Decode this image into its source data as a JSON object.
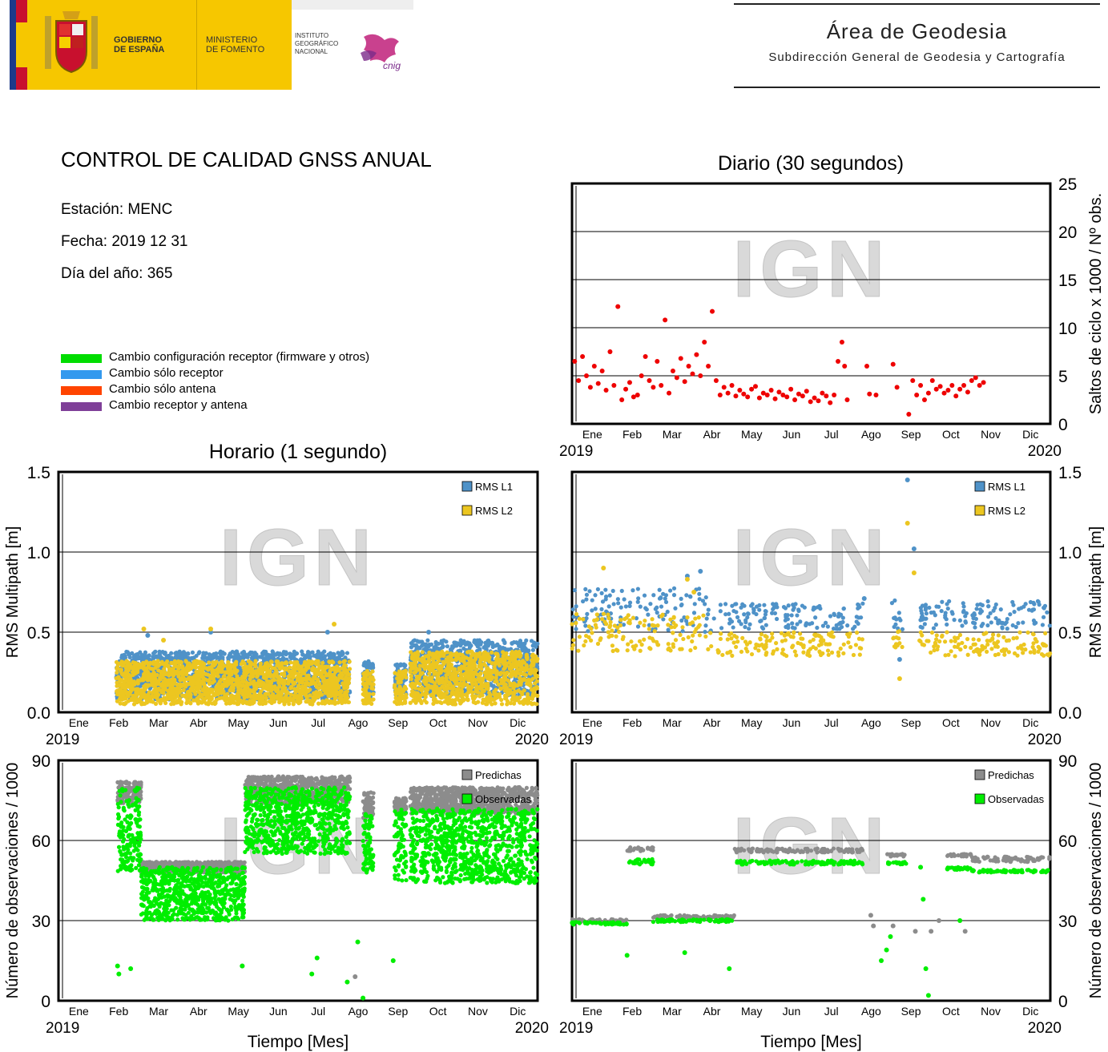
{
  "header": {
    "gobierno": [
      "GOBIERNO",
      "DE ESPAÑA"
    ],
    "ministerio": [
      "MINISTERIO",
      "DE FOMENTO"
    ],
    "instituto": [
      "INSTITUTO",
      "GEOGRÁFICO",
      "NACIONAL"
    ],
    "cnig": "cnig",
    "area_title": "Área de Geodesia",
    "area_subtitle": "Subdirección General de Geodesia y Cartografía",
    "colors": {
      "flag_red": "#c8102e",
      "flag_yellow": "#f6c700",
      "flag_blue": "#1d3a8a"
    }
  },
  "info": {
    "title": "CONTROL DE CALIDAD GNSS ANUAL",
    "station": "Estación: MENC",
    "date": "Fecha: 2019 12 31",
    "doy": "Día del año: 365"
  },
  "legend_changes": [
    {
      "label": "Cambio configuración receptor (firmware y otros)",
      "color": "#00dd00"
    },
    {
      "label": "Cambio sólo receptor",
      "color": "#3399ee"
    },
    {
      "label": "Cambio sólo antena",
      "color": "#ff4400"
    },
    {
      "label": "Cambio receptor y antena",
      "color": "#7f3f98"
    }
  ],
  "watermark": "IGN",
  "chart_data": [
    {
      "id": "daily-cycle-slips",
      "type": "scatter",
      "title": "Diario (30 segundos)",
      "ylabel": "Saltos de ciclo x 1000 / Nº obs.",
      "ylim": [
        0,
        25
      ],
      "yticks": [
        "0",
        "5",
        "10",
        "15",
        "20",
        "25"
      ],
      "xlim": [
        0,
        365
      ],
      "months": [
        "Ene",
        "Feb",
        "Mar",
        "Abr",
        "May",
        "Jun",
        "Jul",
        "Ago",
        "Sep",
        "Oct",
        "Nov",
        "Dic"
      ],
      "year_start": "2019",
      "year_end": "2020",
      "series": [
        {
          "color": "#ee0000",
          "points": [
            [
              2,
              6.5
            ],
            [
              5,
              4.5
            ],
            [
              8,
              7
            ],
            [
              11,
              5
            ],
            [
              14,
              3.8
            ],
            [
              17,
              6
            ],
            [
              20,
              4.2
            ],
            [
              23,
              5.5
            ],
            [
              26,
              3.5
            ],
            [
              29,
              7.5
            ],
            [
              32,
              4
            ],
            [
              35,
              12.2
            ],
            [
              38,
              2.5
            ],
            [
              41,
              3.6
            ],
            [
              44,
              4.3
            ],
            [
              47,
              2.8
            ],
            [
              50,
              3
            ],
            [
              53,
              5
            ],
            [
              56,
              7
            ],
            [
              59,
              4.5
            ],
            [
              62,
              3.8
            ],
            [
              65,
              6.5
            ],
            [
              68,
              4
            ],
            [
              71,
              10.8
            ],
            [
              74,
              3.2
            ],
            [
              77,
              5.5
            ],
            [
              80,
              4.8
            ],
            [
              83,
              6.8
            ],
            [
              86,
              4.4
            ],
            [
              89,
              6
            ],
            [
              92,
              5.2
            ],
            [
              95,
              7.2
            ],
            [
              98,
              5
            ],
            [
              101,
              8.5
            ],
            [
              104,
              6
            ],
            [
              107,
              11.7
            ],
            [
              110,
              4.5
            ],
            [
              113,
              3
            ],
            [
              116,
              3.8
            ],
            [
              119,
              3.2
            ],
            [
              122,
              4
            ],
            [
              125,
              2.9
            ],
            [
              128,
              3.5
            ],
            [
              131,
              3.1
            ],
            [
              134,
              2.8
            ],
            [
              137,
              3.6
            ],
            [
              140,
              3.9
            ],
            [
              143,
              2.7
            ],
            [
              146,
              3.2
            ],
            [
              149,
              3
            ],
            [
              152,
              3.5
            ],
            [
              155,
              2.6
            ],
            [
              158,
              3.3
            ],
            [
              161,
              3
            ],
            [
              164,
              2.8
            ],
            [
              167,
              3.6
            ],
            [
              170,
              2.5
            ],
            [
              173,
              3.1
            ],
            [
              176,
              2.9
            ],
            [
              179,
              3.4
            ],
            [
              182,
              2.3
            ],
            [
              185,
              2.7
            ],
            [
              188,
              2.4
            ],
            [
              191,
              3.2
            ],
            [
              194,
              2.9
            ],
            [
              197,
              2.2
            ],
            [
              200,
              3
            ],
            [
              203,
              6.5
            ],
            [
              206,
              8.5
            ],
            [
              208,
              6
            ],
            [
              210,
              2.5
            ],
            [
              225,
              6
            ],
            [
              227,
              3.1
            ],
            [
              232,
              3
            ],
            [
              245,
              6.2
            ],
            [
              248,
              3.8
            ],
            [
              257,
              1
            ],
            [
              260,
              4.5
            ],
            [
              263,
              3
            ],
            [
              266,
              4
            ],
            [
              269,
              2.5
            ],
            [
              272,
              3.2
            ],
            [
              275,
              4.5
            ],
            [
              278,
              3.6
            ],
            [
              281,
              3.9
            ],
            [
              284,
              3.2
            ],
            [
              287,
              3.5
            ],
            [
              290,
              4
            ],
            [
              293,
              2.9
            ],
            [
              296,
              3.6
            ],
            [
              299,
              4
            ],
            [
              302,
              3.3
            ],
            [
              305,
              4.5
            ],
            [
              308,
              4.8
            ],
            [
              311,
              4
            ],
            [
              314,
              4.3
            ]
          ]
        }
      ]
    },
    {
      "id": "hourly-rms-multipath",
      "type": "scatter",
      "title": "Horario (1 segundo)",
      "ylabel": "RMS Multipath [m]",
      "ylim": [
        0,
        1.5
      ],
      "yticks": [
        "0.0",
        "0.5",
        "1.0",
        "1.5"
      ],
      "xlim": [
        0,
        365
      ],
      "months": [
        "Ene",
        "Feb",
        "Mar",
        "Abr",
        "May",
        "Jun",
        "Jul",
        "Ago",
        "Sep",
        "Oct",
        "Nov",
        "Dic"
      ],
      "year_start": "2019",
      "year_end": "2020",
      "series": [
        {
          "name": "RMS L1",
          "color": "#4f92c8",
          "segments": [
            [
              44,
              222,
              0.08,
              0.38
            ],
            [
              232,
              240,
              0.08,
              0.32
            ],
            [
              256,
              265,
              0.1,
              0.3
            ],
            [
              268,
              365,
              0.1,
              0.45
            ]
          ],
          "outliers": [
            [
              68,
              0.48
            ],
            [
              116,
              0.5
            ],
            [
              205,
              0.5
            ],
            [
              282,
              0.5
            ]
          ]
        },
        {
          "name": "RMS L2",
          "color": "#ecc620",
          "segments": [
            [
              44,
              222,
              0.05,
              0.32
            ],
            [
              232,
              240,
              0.05,
              0.26
            ],
            [
              256,
              265,
              0.05,
              0.26
            ],
            [
              268,
              365,
              0.05,
              0.38
            ]
          ],
          "outliers": [
            [
              65,
              0.52
            ],
            [
              80,
              0.45
            ],
            [
              116,
              0.52
            ],
            [
              210,
              0.55
            ]
          ]
        }
      ]
    },
    {
      "id": "daily-rms-multipath",
      "type": "scatter",
      "title": "",
      "ylabel": "RMS Multipath [m]",
      "ylim": [
        0,
        1.5
      ],
      "yticks": [
        "0.0",
        "0.5",
        "1.0",
        "1.5"
      ],
      "xlim": [
        0,
        365
      ],
      "months": [
        "Ene",
        "Feb",
        "Mar",
        "Abr",
        "May",
        "Jun",
        "Jul",
        "Ago",
        "Sep",
        "Oct",
        "Nov",
        "Dic"
      ],
      "year_start": "2019",
      "year_end": "2020",
      "series": [
        {
          "name": "RMS L1",
          "color": "#4f92c8",
          "segments": [
            [
              0,
              108,
              0.5,
              0.78
            ],
            [
              108,
              222,
              0.52,
              0.68
            ],
            [
              243,
              253,
              0.5,
              0.7
            ],
            [
              265,
              365,
              0.52,
              0.7
            ]
          ],
          "outliers": [
            [
              88,
              0.85
            ],
            [
              98,
              0.88
            ],
            [
              256,
              1.45
            ],
            [
              261,
              1.02
            ],
            [
              223,
              0.71
            ],
            [
              250,
              0.33
            ]
          ]
        },
        {
          "name": "RMS L2",
          "color": "#ecc620",
          "segments": [
            [
              0,
              108,
              0.38,
              0.62
            ],
            [
              108,
              222,
              0.35,
              0.5
            ],
            [
              243,
              253,
              0.4,
              0.52
            ],
            [
              265,
              365,
              0.35,
              0.5
            ]
          ],
          "outliers": [
            [
              24,
              0.9
            ],
            [
              88,
              0.83
            ],
            [
              93,
              0.75
            ],
            [
              256,
              1.18
            ],
            [
              261,
              0.87
            ],
            [
              250,
              0.21
            ]
          ]
        }
      ]
    },
    {
      "id": "hourly-observations",
      "type": "scatter",
      "title": "",
      "ylabel": "Número de observaciones / 1000",
      "xlabel": "Tiempo [Mes]",
      "ylim": [
        0,
        90
      ],
      "yticks": [
        "0",
        "30",
        "60",
        "90"
      ],
      "xlim": [
        0,
        365
      ],
      "months": [
        "Ene",
        "Feb",
        "Mar",
        "Abr",
        "May",
        "Jun",
        "Jul",
        "Ago",
        "Sep",
        "Oct",
        "Nov",
        "Dic"
      ],
      "year_start": "2019",
      "year_end": "2020",
      "series": [
        {
          "name": "Predichas",
          "color": "#8c8c8c",
          "segments": [
            [
              45,
              63,
              74,
              82
            ],
            [
              63,
              142,
              48,
              52
            ],
            [
              142,
              222,
              74,
              84
            ],
            [
              232,
              240,
              68,
              78
            ],
            [
              256,
              265,
              70,
              76
            ],
            [
              268,
              365,
              70,
              80
            ]
          ],
          "outliers": [
            [
              140,
              13
            ],
            [
              226,
              9
            ]
          ]
        },
        {
          "name": "Observadas",
          "color": "#00ee00",
          "segments": [
            [
              45,
              63,
              48,
              80
            ],
            [
              63,
              142,
              30,
              50
            ],
            [
              142,
              222,
              55,
              80
            ],
            [
              232,
              240,
              48,
              70
            ],
            [
              256,
              265,
              45,
              72
            ],
            [
              268,
              365,
              44,
              72
            ]
          ],
          "outliers": [
            [
              45,
              13
            ],
            [
              46,
              10
            ],
            [
              55,
              12
            ],
            [
              140,
              13
            ],
            [
              193,
              10
            ],
            [
              197,
              16
            ],
            [
              220,
              7
            ],
            [
              228,
              22
            ],
            [
              232,
              1
            ],
            [
              255,
              15
            ]
          ]
        }
      ]
    },
    {
      "id": "daily-observations",
      "type": "scatter",
      "title": "",
      "ylabel": "Número de observaciones / 1000",
      "xlabel": "Tiempo [Mes]",
      "ylim": [
        0,
        90
      ],
      "yticks": [
        "0",
        "30",
        "60",
        "90"
      ],
      "xlim": [
        0,
        365
      ],
      "months": [
        "Ene",
        "Feb",
        "Mar",
        "Abr",
        "May",
        "Jun",
        "Jul",
        "Ago",
        "Sep",
        "Oct",
        "Nov",
        "Dic"
      ],
      "year_start": "2019",
      "year_end": "2020",
      "series": [
        {
          "name": "Predichas",
          "color": "#8c8c8c",
          "segments": [
            [
              0,
              42,
              29.5,
              30.5
            ],
            [
              42,
              62,
              56,
              57.5
            ],
            [
              62,
              124,
              31,
              32
            ],
            [
              124,
              222,
              55.5,
              57
            ],
            [
              240,
              255,
              54,
              55
            ],
            [
              286,
              305,
              54,
              55
            ],
            [
              305,
              365,
              52,
              54
            ]
          ],
          "outliers": [
            [
              228,
              32
            ],
            [
              230,
              28
            ],
            [
              245,
              28
            ],
            [
              262,
              26
            ],
            [
              274,
              26
            ],
            [
              280,
              30
            ],
            [
              300,
              26
            ]
          ]
        },
        {
          "name": "Observadas",
          "color": "#00ee00",
          "segments": [
            [
              0,
              42,
              28.5,
              29.5
            ],
            [
              42,
              62,
              51,
              53
            ],
            [
              62,
              124,
              29.5,
              30.5
            ],
            [
              124,
              222,
              51,
              52.5
            ],
            [
              240,
              255,
              51,
              52
            ],
            [
              286,
              305,
              49,
              50
            ],
            [
              305,
              365,
              48,
              49
            ]
          ],
          "outliers": [
            [
              42,
              17
            ],
            [
              86,
              18
            ],
            [
              120,
              12
            ],
            [
              236,
              15
            ],
            [
              240,
              19
            ],
            [
              243,
              24
            ],
            [
              266,
              50
            ],
            [
              268,
              38
            ],
            [
              270,
              12
            ],
            [
              272,
              2
            ],
            [
              296,
              30
            ]
          ]
        }
      ]
    }
  ]
}
